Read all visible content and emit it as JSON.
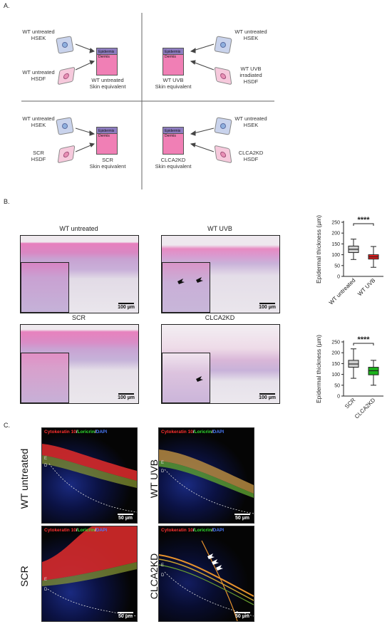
{
  "panels": {
    "a": "A.",
    "b": "B.",
    "c": "C."
  },
  "schematic": {
    "tissue_epidermis": "Epidermis",
    "tissue_dermis": "Dermis",
    "quadrants": [
      {
        "ker_label": "WT untreated\nHSEK",
        "fib_label": "WT untreated\nHSDF",
        "result": "WT untreated\nSkin equivalent"
      },
      {
        "ker_label": "WT untreated\nHSEK",
        "fib_label": "WT UVB\nirradiated\nHSDF",
        "result": "WT UVB\nSkin equivalent"
      },
      {
        "ker_label": "WT untreated\nHSEK",
        "fib_label": "SCR\nHSDF",
        "result": "SCR\nSkin equivalent"
      },
      {
        "ker_label": "WT untreated\nHSEK",
        "fib_label": "CLCA2KD\nHSDF",
        "result": "CLCA2KD\nSkin equivalent"
      }
    ]
  },
  "histology": {
    "images": [
      {
        "title": "WT untreated",
        "scale": "100 µm"
      },
      {
        "title": "WT UVB",
        "scale": "100 µm"
      },
      {
        "title": "SCR",
        "scale": "100 µm"
      },
      {
        "title": "CLCA2KD",
        "scale": "100 µm"
      }
    ]
  },
  "chart_data": [
    {
      "type": "boxplot",
      "ylabel": "Epidermal thickness (µm)",
      "ylim": [
        0,
        250
      ],
      "yticks": [
        "0",
        "50",
        "100",
        "150",
        "200",
        "250"
      ],
      "significance": "****",
      "categories": [
        "WT untreated",
        "WT UVB"
      ],
      "boxes": [
        {
          "name": "WT untreated",
          "min": 78,
          "q1": 110,
          "median": 125,
          "q3": 140,
          "max": 172,
          "color": "#d0d0d0"
        },
        {
          "name": "WT UVB",
          "min": 42,
          "q1": 80,
          "median": 90,
          "q3": 100,
          "max": 138,
          "color": "#ee1c1c"
        }
      ]
    },
    {
      "type": "boxplot",
      "ylabel": "Epidermal thickness (µm)",
      "ylim": [
        0,
        250
      ],
      "yticks": [
        "0",
        "50",
        "100",
        "150",
        "200",
        "250"
      ],
      "significance": "****",
      "categories": [
        "SCR",
        "CLCA2KD"
      ],
      "boxes": [
        {
          "name": "SCR",
          "min": 82,
          "q1": 133,
          "median": 148,
          "q3": 165,
          "max": 218,
          "color": "#d0d0d0"
        },
        {
          "name": "CLCA2KD",
          "min": 50,
          "q1": 98,
          "median": 117,
          "q3": 133,
          "max": 165,
          "color": "#1ab21a"
        }
      ]
    }
  ],
  "immuno": {
    "images": [
      {
        "label": "WT untreated",
        "stain_k10": "Cytokeratin 10",
        "stain_lor": "Loricrin",
        "stain_dapi": "DAPI",
        "sep": "/",
        "e": "E",
        "d": "D",
        "scale": "50 µm"
      },
      {
        "label": "WT UVB",
        "stain_k10": "Cytokeratin 10",
        "stain_lor": "Loricrin",
        "stain_dapi": "DAPI",
        "sep": "/",
        "e": "E",
        "d": "D",
        "scale": "50 µm"
      },
      {
        "label": "SCR",
        "stain_k10": "Cytokeratin 10",
        "stain_lor": "Loricrin",
        "stain_dapi": "DAPI",
        "sep": "/",
        "e": "E",
        "d": "D",
        "scale": "50 µm"
      },
      {
        "label": "CLCA2KD",
        "stain_k10": "Cytokeratin 10",
        "stain_lor": "Loricrin",
        "stain_dapi": "DAPI",
        "sep": "/",
        "e": "E",
        "d": "D",
        "scale": "50 µm"
      }
    ]
  }
}
